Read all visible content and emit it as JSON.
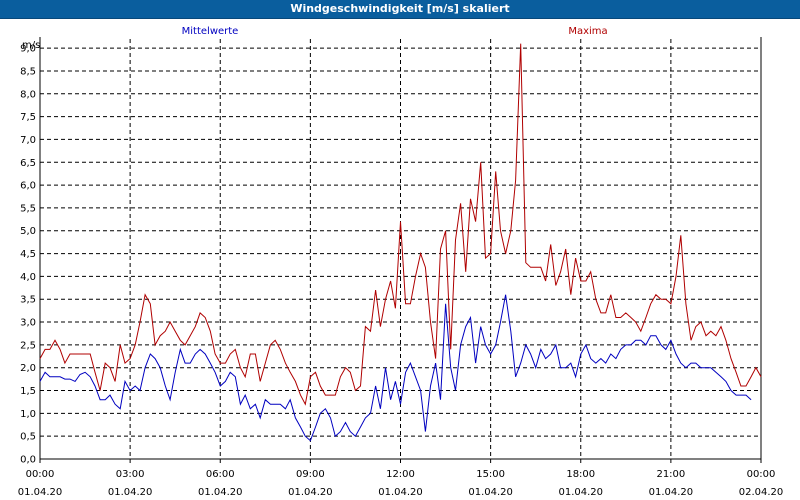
{
  "window": {
    "title": "Windgeschwindigkeit [m/s] skaliert"
  },
  "chart_data": {
    "type": "line",
    "title": "Windgeschwindigkeit [m/s] skaliert",
    "ylabel": "m/s",
    "ylim": [
      0,
      9.2
    ],
    "y_ticks": [
      "0,0",
      "0,5",
      "1,0",
      "1,5",
      "2,0",
      "2,5",
      "3,0",
      "3,5",
      "4,0",
      "4,5",
      "5,0",
      "5,5",
      "6,0",
      "6,5",
      "7,0",
      "7,5",
      "8,0",
      "8,5",
      "9,0"
    ],
    "y_tick_values": [
      0,
      0.5,
      1,
      1.5,
      2,
      2.5,
      3,
      3.5,
      4,
      4.5,
      5,
      5.5,
      6,
      6.5,
      7,
      7.5,
      8,
      8.5,
      9
    ],
    "x_range_hours": [
      0,
      24
    ],
    "x_ticks": [
      {
        "h": 0,
        "time": "00:00",
        "date": "01.04.20"
      },
      {
        "h": 3,
        "time": "03:00",
        "date": "01.04.20"
      },
      {
        "h": 6,
        "time": "06:00",
        "date": "01.04.20"
      },
      {
        "h": 9,
        "time": "09:00",
        "date": "01.04.20"
      },
      {
        "h": 12,
        "time": "12:00",
        "date": "01.04.20"
      },
      {
        "h": 15,
        "time": "15:00",
        "date": "01.04.20"
      },
      {
        "h": 18,
        "time": "18:00",
        "date": "01.04.20"
      },
      {
        "h": 21,
        "time": "21:00",
        "date": "01.04.20"
      },
      {
        "h": 24,
        "time": "00:00",
        "date": "02.04.20"
      }
    ],
    "grid": true,
    "series": [
      {
        "name": "Mittelwerte",
        "color": "#0000c0",
        "legend": "top-left",
        "points": [
          [
            0.0,
            1.7
          ],
          [
            0.17,
            1.9
          ],
          [
            0.33,
            1.8
          ],
          [
            0.5,
            1.8
          ],
          [
            0.67,
            1.8
          ],
          [
            0.83,
            1.75
          ],
          [
            1.0,
            1.75
          ],
          [
            1.17,
            1.7
          ],
          [
            1.33,
            1.85
          ],
          [
            1.5,
            1.9
          ],
          [
            1.67,
            1.8
          ],
          [
            1.83,
            1.6
          ],
          [
            2.0,
            1.3
          ],
          [
            2.17,
            1.3
          ],
          [
            2.33,
            1.4
          ],
          [
            2.5,
            1.2
          ],
          [
            2.67,
            1.1
          ],
          [
            2.83,
            1.7
          ],
          [
            3.0,
            1.5
          ],
          [
            3.17,
            1.6
          ],
          [
            3.33,
            1.5
          ],
          [
            3.5,
            2.0
          ],
          [
            3.67,
            2.3
          ],
          [
            3.83,
            2.2
          ],
          [
            4.0,
            2.0
          ],
          [
            4.17,
            1.6
          ],
          [
            4.33,
            1.3
          ],
          [
            4.5,
            1.9
          ],
          [
            4.67,
            2.4
          ],
          [
            4.83,
            2.1
          ],
          [
            5.0,
            2.1
          ],
          [
            5.17,
            2.3
          ],
          [
            5.33,
            2.4
          ],
          [
            5.5,
            2.3
          ],
          [
            5.67,
            2.1
          ],
          [
            5.83,
            1.9
          ],
          [
            6.0,
            1.6
          ],
          [
            6.17,
            1.7
          ],
          [
            6.33,
            1.9
          ],
          [
            6.5,
            1.8
          ],
          [
            6.67,
            1.2
          ],
          [
            6.83,
            1.4
          ],
          [
            7.0,
            1.1
          ],
          [
            7.17,
            1.2
          ],
          [
            7.33,
            0.9
          ],
          [
            7.5,
            1.3
          ],
          [
            7.67,
            1.2
          ],
          [
            7.83,
            1.2
          ],
          [
            8.0,
            1.2
          ],
          [
            8.17,
            1.1
          ],
          [
            8.33,
            1.3
          ],
          [
            8.5,
            0.9
          ],
          [
            8.67,
            0.7
          ],
          [
            8.83,
            0.5
          ],
          [
            9.0,
            0.4
          ],
          [
            9.17,
            0.7
          ],
          [
            9.33,
            1.0
          ],
          [
            9.5,
            1.1
          ],
          [
            9.67,
            0.9
          ],
          [
            9.83,
            0.5
          ],
          [
            10.0,
            0.6
          ],
          [
            10.17,
            0.8
          ],
          [
            10.33,
            0.6
          ],
          [
            10.5,
            0.5
          ],
          [
            10.67,
            0.7
          ],
          [
            10.83,
            0.9
          ],
          [
            11.0,
            1.0
          ],
          [
            11.17,
            1.6
          ],
          [
            11.33,
            1.1
          ],
          [
            11.5,
            2.0
          ],
          [
            11.67,
            1.3
          ],
          [
            11.83,
            1.7
          ],
          [
            12.0,
            1.2
          ],
          [
            12.17,
            1.9
          ],
          [
            12.33,
            2.1
          ],
          [
            12.5,
            1.8
          ],
          [
            12.67,
            1.5
          ],
          [
            12.83,
            0.6
          ],
          [
            13.0,
            1.6
          ],
          [
            13.17,
            2.1
          ],
          [
            13.33,
            1.3
          ],
          [
            13.5,
            3.4
          ],
          [
            13.67,
            2.0
          ],
          [
            13.83,
            1.5
          ],
          [
            14.0,
            2.5
          ],
          [
            14.17,
            2.9
          ],
          [
            14.33,
            3.1
          ],
          [
            14.5,
            2.1
          ],
          [
            14.67,
            2.9
          ],
          [
            14.83,
            2.5
          ],
          [
            15.0,
            2.3
          ],
          [
            15.17,
            2.5
          ],
          [
            15.33,
            3.0
          ],
          [
            15.5,
            3.6
          ],
          [
            15.67,
            2.8
          ],
          [
            15.83,
            1.8
          ],
          [
            16.0,
            2.1
          ],
          [
            16.17,
            2.5
          ],
          [
            16.33,
            2.3
          ],
          [
            16.5,
            2.0
          ],
          [
            16.67,
            2.4
          ],
          [
            16.83,
            2.2
          ],
          [
            17.0,
            2.3
          ],
          [
            17.17,
            2.5
          ],
          [
            17.33,
            2.0
          ],
          [
            17.5,
            2.0
          ],
          [
            17.67,
            2.1
          ],
          [
            17.83,
            1.8
          ],
          [
            18.0,
            2.3
          ],
          [
            18.17,
            2.5
          ],
          [
            18.33,
            2.2
          ],
          [
            18.5,
            2.1
          ],
          [
            18.67,
            2.2
          ],
          [
            18.83,
            2.1
          ],
          [
            19.0,
            2.3
          ],
          [
            19.17,
            2.2
          ],
          [
            19.33,
            2.4
          ],
          [
            19.5,
            2.5
          ],
          [
            19.67,
            2.5
          ],
          [
            19.83,
            2.6
          ],
          [
            20.0,
            2.6
          ],
          [
            20.17,
            2.5
          ],
          [
            20.33,
            2.7
          ],
          [
            20.5,
            2.7
          ],
          [
            20.67,
            2.5
          ],
          [
            20.83,
            2.4
          ],
          [
            21.0,
            2.6
          ],
          [
            21.17,
            2.3
          ],
          [
            21.33,
            2.1
          ],
          [
            21.5,
            2.0
          ],
          [
            21.67,
            2.1
          ],
          [
            21.83,
            2.1
          ],
          [
            22.0,
            2.0
          ],
          [
            22.17,
            2.0
          ],
          [
            22.33,
            2.0
          ],
          [
            22.5,
            1.9
          ],
          [
            22.67,
            1.8
          ],
          [
            22.83,
            1.7
          ],
          [
            23.0,
            1.5
          ],
          [
            23.17,
            1.4
          ],
          [
            23.33,
            1.4
          ],
          [
            23.5,
            1.4
          ],
          [
            23.67,
            1.3
          ]
        ]
      },
      {
        "name": "Maxima",
        "color": "#b00000",
        "legend": "top-right",
        "points": [
          [
            0.0,
            2.2
          ],
          [
            0.17,
            2.4
          ],
          [
            0.33,
            2.4
          ],
          [
            0.5,
            2.6
          ],
          [
            0.67,
            2.4
          ],
          [
            0.83,
            2.1
          ],
          [
            1.0,
            2.3
          ],
          [
            1.17,
            2.3
          ],
          [
            1.33,
            2.3
          ],
          [
            1.5,
            2.3
          ],
          [
            1.67,
            2.3
          ],
          [
            1.83,
            1.9
          ],
          [
            2.0,
            1.5
          ],
          [
            2.17,
            2.1
          ],
          [
            2.33,
            2.0
          ],
          [
            2.5,
            1.7
          ],
          [
            2.67,
            2.5
          ],
          [
            2.83,
            2.1
          ],
          [
            3.0,
            2.2
          ],
          [
            3.17,
            2.5
          ],
          [
            3.33,
            3.0
          ],
          [
            3.5,
            3.6
          ],
          [
            3.67,
            3.4
          ],
          [
            3.83,
            2.5
          ],
          [
            4.0,
            2.7
          ],
          [
            4.17,
            2.8
          ],
          [
            4.33,
            3.0
          ],
          [
            4.5,
            2.8
          ],
          [
            4.67,
            2.6
          ],
          [
            4.83,
            2.5
          ],
          [
            5.0,
            2.7
          ],
          [
            5.17,
            2.9
          ],
          [
            5.33,
            3.2
          ],
          [
            5.5,
            3.1
          ],
          [
            5.67,
            2.8
          ],
          [
            5.83,
            2.3
          ],
          [
            6.0,
            2.1
          ],
          [
            6.17,
            2.1
          ],
          [
            6.33,
            2.3
          ],
          [
            6.5,
            2.4
          ],
          [
            6.67,
            2.0
          ],
          [
            6.83,
            1.8
          ],
          [
            7.0,
            2.3
          ],
          [
            7.17,
            2.3
          ],
          [
            7.33,
            1.7
          ],
          [
            7.5,
            2.1
          ],
          [
            7.67,
            2.5
          ],
          [
            7.83,
            2.6
          ],
          [
            8.0,
            2.4
          ],
          [
            8.17,
            2.1
          ],
          [
            8.33,
            1.9
          ],
          [
            8.5,
            1.7
          ],
          [
            8.67,
            1.4
          ],
          [
            8.83,
            1.2
          ],
          [
            9.0,
            1.8
          ],
          [
            9.17,
            1.9
          ],
          [
            9.33,
            1.6
          ],
          [
            9.5,
            1.4
          ],
          [
            9.67,
            1.4
          ],
          [
            9.83,
            1.4
          ],
          [
            10.0,
            1.8
          ],
          [
            10.17,
            2.0
          ],
          [
            10.33,
            1.9
          ],
          [
            10.5,
            1.5
          ],
          [
            10.67,
            1.6
          ],
          [
            10.83,
            2.9
          ],
          [
            11.0,
            2.8
          ],
          [
            11.17,
            3.7
          ],
          [
            11.33,
            2.9
          ],
          [
            11.5,
            3.5
          ],
          [
            11.67,
            3.9
          ],
          [
            11.83,
            3.3
          ],
          [
            12.0,
            5.2
          ],
          [
            12.17,
            3.4
          ],
          [
            12.33,
            3.4
          ],
          [
            12.5,
            4.0
          ],
          [
            12.67,
            4.5
          ],
          [
            12.83,
            4.2
          ],
          [
            13.0,
            3.0
          ],
          [
            13.17,
            2.2
          ],
          [
            13.33,
            4.6
          ],
          [
            13.5,
            5.0
          ],
          [
            13.67,
            2.4
          ],
          [
            13.83,
            4.8
          ],
          [
            14.0,
            5.6
          ],
          [
            14.17,
            4.1
          ],
          [
            14.33,
            5.7
          ],
          [
            14.5,
            5.2
          ],
          [
            14.67,
            6.5
          ],
          [
            14.83,
            4.4
          ],
          [
            15.0,
            4.5
          ],
          [
            15.17,
            6.3
          ],
          [
            15.33,
            5.0
          ],
          [
            15.5,
            4.5
          ],
          [
            15.67,
            5.0
          ],
          [
            15.83,
            6.1
          ],
          [
            16.0,
            9.1
          ],
          [
            16.17,
            4.3
          ],
          [
            16.33,
            4.2
          ],
          [
            16.5,
            4.2
          ],
          [
            16.67,
            4.2
          ],
          [
            16.83,
            3.9
          ],
          [
            17.0,
            4.7
          ],
          [
            17.17,
            3.8
          ],
          [
            17.33,
            4.1
          ],
          [
            17.5,
            4.6
          ],
          [
            17.67,
            3.6
          ],
          [
            17.83,
            4.4
          ],
          [
            18.0,
            3.9
          ],
          [
            18.17,
            3.9
          ],
          [
            18.33,
            4.1
          ],
          [
            18.5,
            3.5
          ],
          [
            18.67,
            3.2
          ],
          [
            18.83,
            3.2
          ],
          [
            19.0,
            3.6
          ],
          [
            19.17,
            3.1
          ],
          [
            19.33,
            3.1
          ],
          [
            19.5,
            3.2
          ],
          [
            19.67,
            3.1
          ],
          [
            19.83,
            3.0
          ],
          [
            20.0,
            2.8
          ],
          [
            20.17,
            3.1
          ],
          [
            20.33,
            3.4
          ],
          [
            20.5,
            3.6
          ],
          [
            20.67,
            3.5
          ],
          [
            20.83,
            3.5
          ],
          [
            21.0,
            3.4
          ],
          [
            21.17,
            4.0
          ],
          [
            21.33,
            4.9
          ],
          [
            21.5,
            3.4
          ],
          [
            21.67,
            2.6
          ],
          [
            21.83,
            2.9
          ],
          [
            22.0,
            3.0
          ],
          [
            22.17,
            2.7
          ],
          [
            22.33,
            2.8
          ],
          [
            22.5,
            2.7
          ],
          [
            22.67,
            2.9
          ],
          [
            22.83,
            2.6
          ],
          [
            23.0,
            2.2
          ],
          [
            23.17,
            1.9
          ],
          [
            23.33,
            1.6
          ],
          [
            23.5,
            1.6
          ],
          [
            23.67,
            1.8
          ],
          [
            23.83,
            2.0
          ],
          [
            24.0,
            1.8
          ]
        ]
      }
    ]
  }
}
